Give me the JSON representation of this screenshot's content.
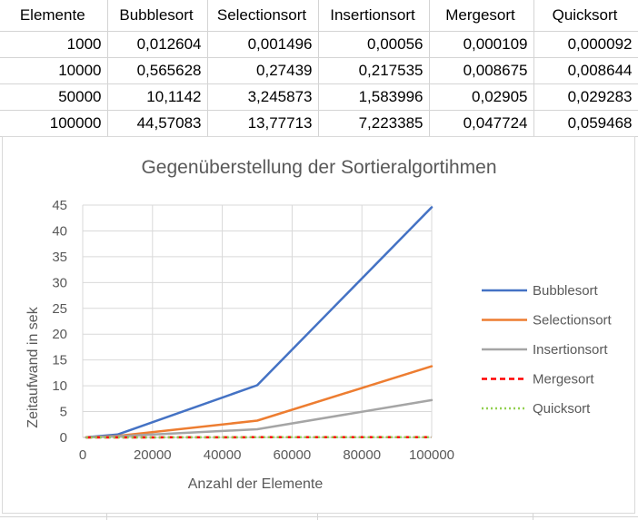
{
  "table": {
    "headers": [
      "Elemente",
      "Bubblesort",
      "Selectionsort",
      "Insertionsort",
      "Mergesort",
      "Quicksort"
    ],
    "rows": [
      [
        "1000",
        "0,012604",
        "0,001496",
        "0,00056",
        "0,000109",
        "0,000092"
      ],
      [
        "10000",
        "0,565628",
        "0,27439",
        "0,217535",
        "0,008675",
        "0,008644"
      ],
      [
        "50000",
        "10,1142",
        "3,245873",
        "1,583996",
        "0,02905",
        "0,029283"
      ],
      [
        "100000",
        "44,57083",
        "13,77713",
        "7,223385",
        "0,047724",
        "0,059468"
      ]
    ]
  },
  "chart_data": {
    "type": "line",
    "title": "Gegenüberstellung der Sortieralgortihmen",
    "xlabel": "Anzahl der Elemente",
    "ylabel": "Zeitaufwand in sek",
    "xlim": [
      0,
      100000
    ],
    "ylim": [
      0,
      45
    ],
    "x_ticks": [
      0,
      20000,
      40000,
      60000,
      80000,
      100000
    ],
    "y_ticks": [
      0,
      5,
      10,
      15,
      20,
      25,
      30,
      35,
      40,
      45
    ],
    "grid": true,
    "legend_position": "right",
    "x": [
      1000,
      10000,
      50000,
      100000
    ],
    "series": [
      {
        "name": "Bubblesort",
        "values": [
          0.012604,
          0.565628,
          10.1142,
          44.57083
        ],
        "color": "#4472C4",
        "dash": "solid"
      },
      {
        "name": "Selectionsort",
        "values": [
          0.001496,
          0.27439,
          3.245873,
          13.77713
        ],
        "color": "#ED7D31",
        "dash": "solid"
      },
      {
        "name": "Insertionsort",
        "values": [
          0.00056,
          0.217535,
          1.583996,
          7.223385
        ],
        "color": "#A5A5A5",
        "dash": "solid"
      },
      {
        "name": "Mergesort",
        "values": [
          0.000109,
          0.008675,
          0.02905,
          0.047724
        ],
        "color": "#FF0000",
        "dash": "dash"
      },
      {
        "name": "Quicksort",
        "values": [
          9.2e-05,
          0.008644,
          0.029283,
          0.059468
        ],
        "color": "#92D050",
        "dash": "dot"
      }
    ]
  }
}
